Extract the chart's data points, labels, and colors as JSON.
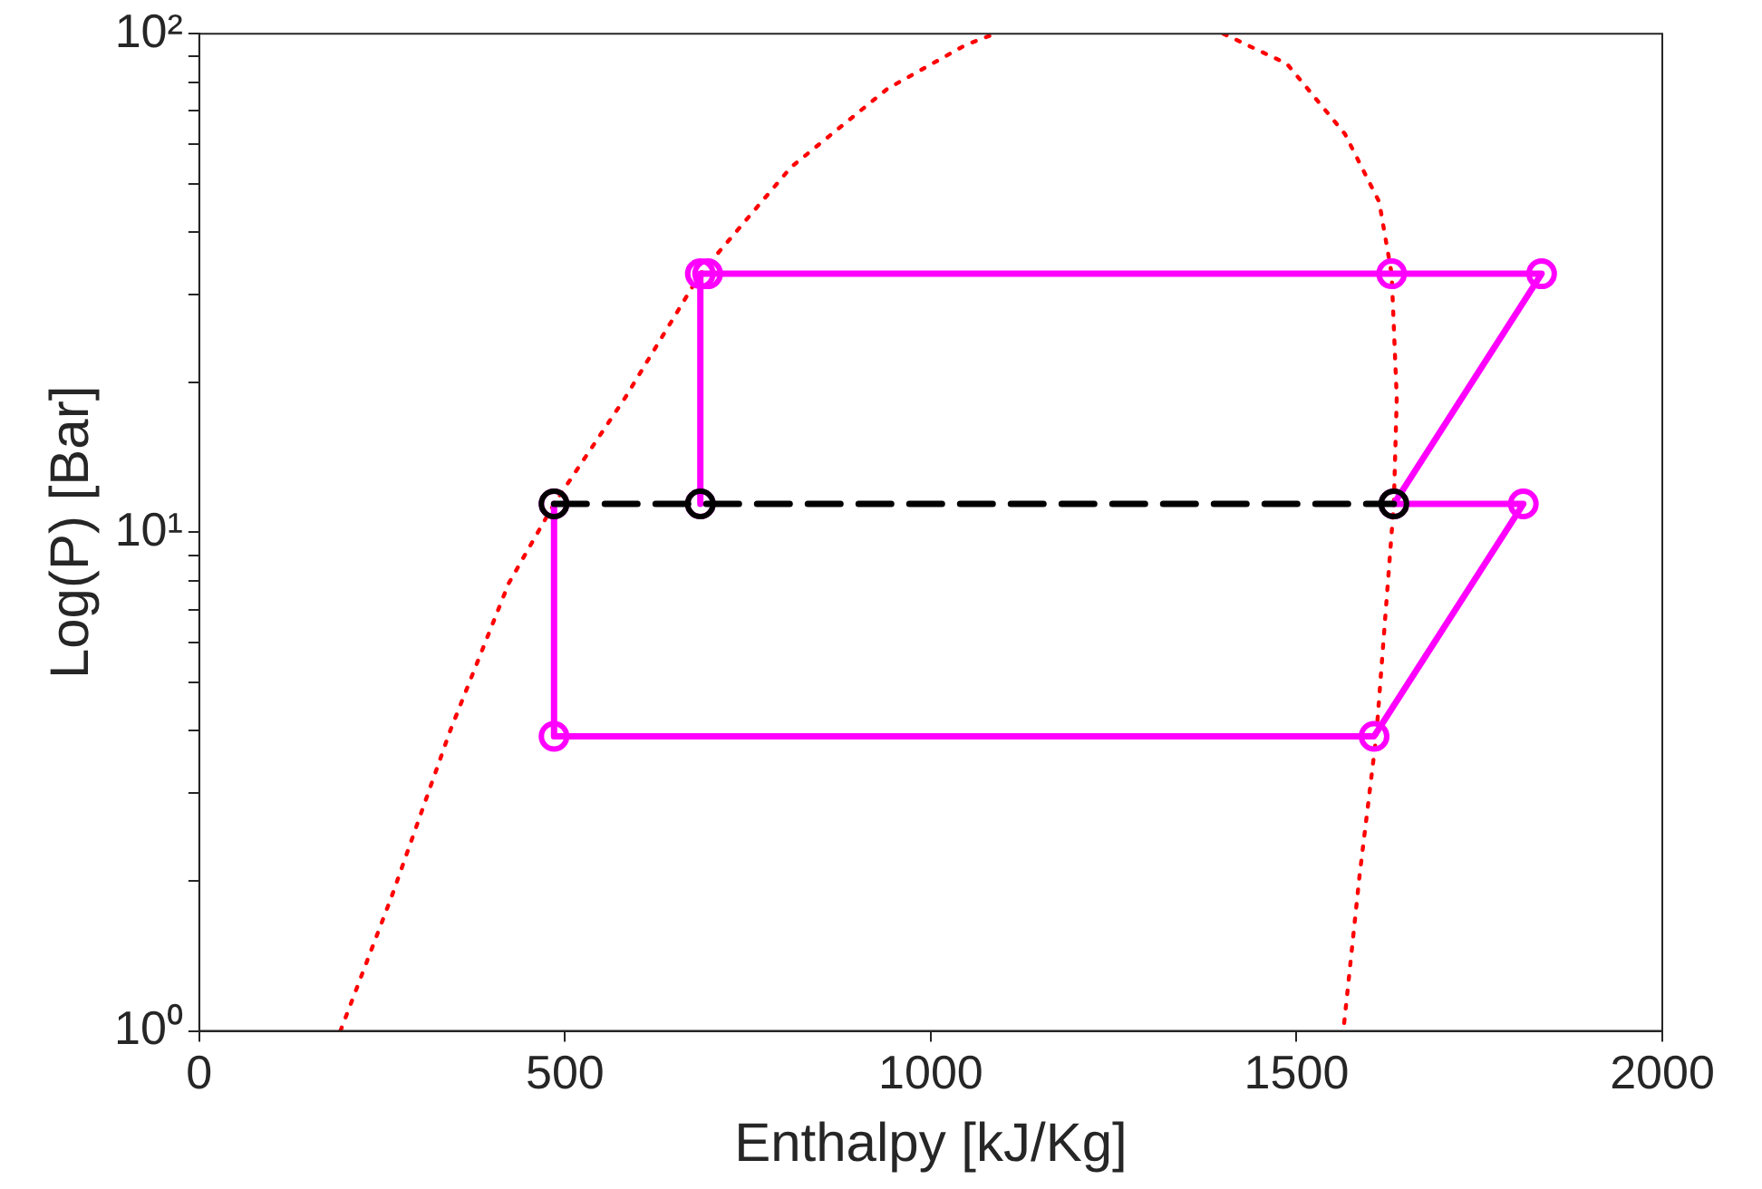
{
  "chart_data": {
    "type": "line",
    "xlabel": "Enthalpy [kJ/Kg]",
    "ylabel": "Log(P) [Bar]",
    "log": "y",
    "grid": false,
    "legend": false,
    "xlim": [
      0,
      2000
    ],
    "xticks": [
      0,
      500,
      1000,
      1500,
      2000
    ],
    "ylim": [
      1,
      100
    ],
    "yticks": [
      {
        "value": 1,
        "label": "10⁰"
      },
      {
        "value": 2,
        "label": null
      },
      {
        "value": 3,
        "label": null
      },
      {
        "value": 4,
        "label": null
      },
      {
        "value": 5,
        "label": null
      },
      {
        "value": 6,
        "label": null
      },
      {
        "value": 7,
        "label": null
      },
      {
        "value": 8,
        "label": null
      },
      {
        "value": 9,
        "label": null
      },
      {
        "value": 10,
        "label": "10¹"
      },
      {
        "value": 20,
        "label": null
      },
      {
        "value": 30,
        "label": null
      },
      {
        "value": 40,
        "label": null
      },
      {
        "value": 50,
        "label": null
      },
      {
        "value": 60,
        "label": null
      },
      {
        "value": 70,
        "label": null
      },
      {
        "value": 80,
        "label": null
      },
      {
        "value": 90,
        "label": null
      },
      {
        "value": 100,
        "label": "10²"
      }
    ],
    "series": [
      {
        "color": "#ff0000",
        "line_style": "dotted",
        "marker": "none",
        "x": [
          193,
          263,
          343,
          423,
          485,
          582,
          685,
          809,
          941,
          1048,
          1088
        ],
        "values": [
          1,
          1.86,
          4,
          7.9,
          11.4,
          18.6,
          33,
          54,
          77.6,
          95,
          100
        ]
      },
      {
        "color": "#ff0000",
        "line_style": "dotted",
        "marker": "none",
        "x": [
          1400,
          1487,
          1566,
          1613,
          1630,
          1637,
          1633,
          1609,
          1586,
          1564
        ],
        "values": [
          100,
          87,
          63,
          46,
          33,
          18.6,
          11.4,
          3.9,
          2.04,
          1
        ]
      },
      {
        "color": "#ff00ff",
        "line_style": "solid",
        "marker": "circle",
        "x": [
          685,
          685,
          695,
          1630,
          1835,
          1633,
          1810,
          1606,
          485,
          485
        ],
        "values": [
          11.4,
          33,
          33,
          33,
          33,
          11.4,
          11.4,
          3.9,
          3.9,
          11.4
        ]
      },
      {
        "color": "#000000",
        "line_style": "dashed",
        "marker": "circle",
        "x": [
          485,
          685,
          1633
        ],
        "values": [
          11.4,
          11.4,
          11.4
        ]
      }
    ]
  }
}
